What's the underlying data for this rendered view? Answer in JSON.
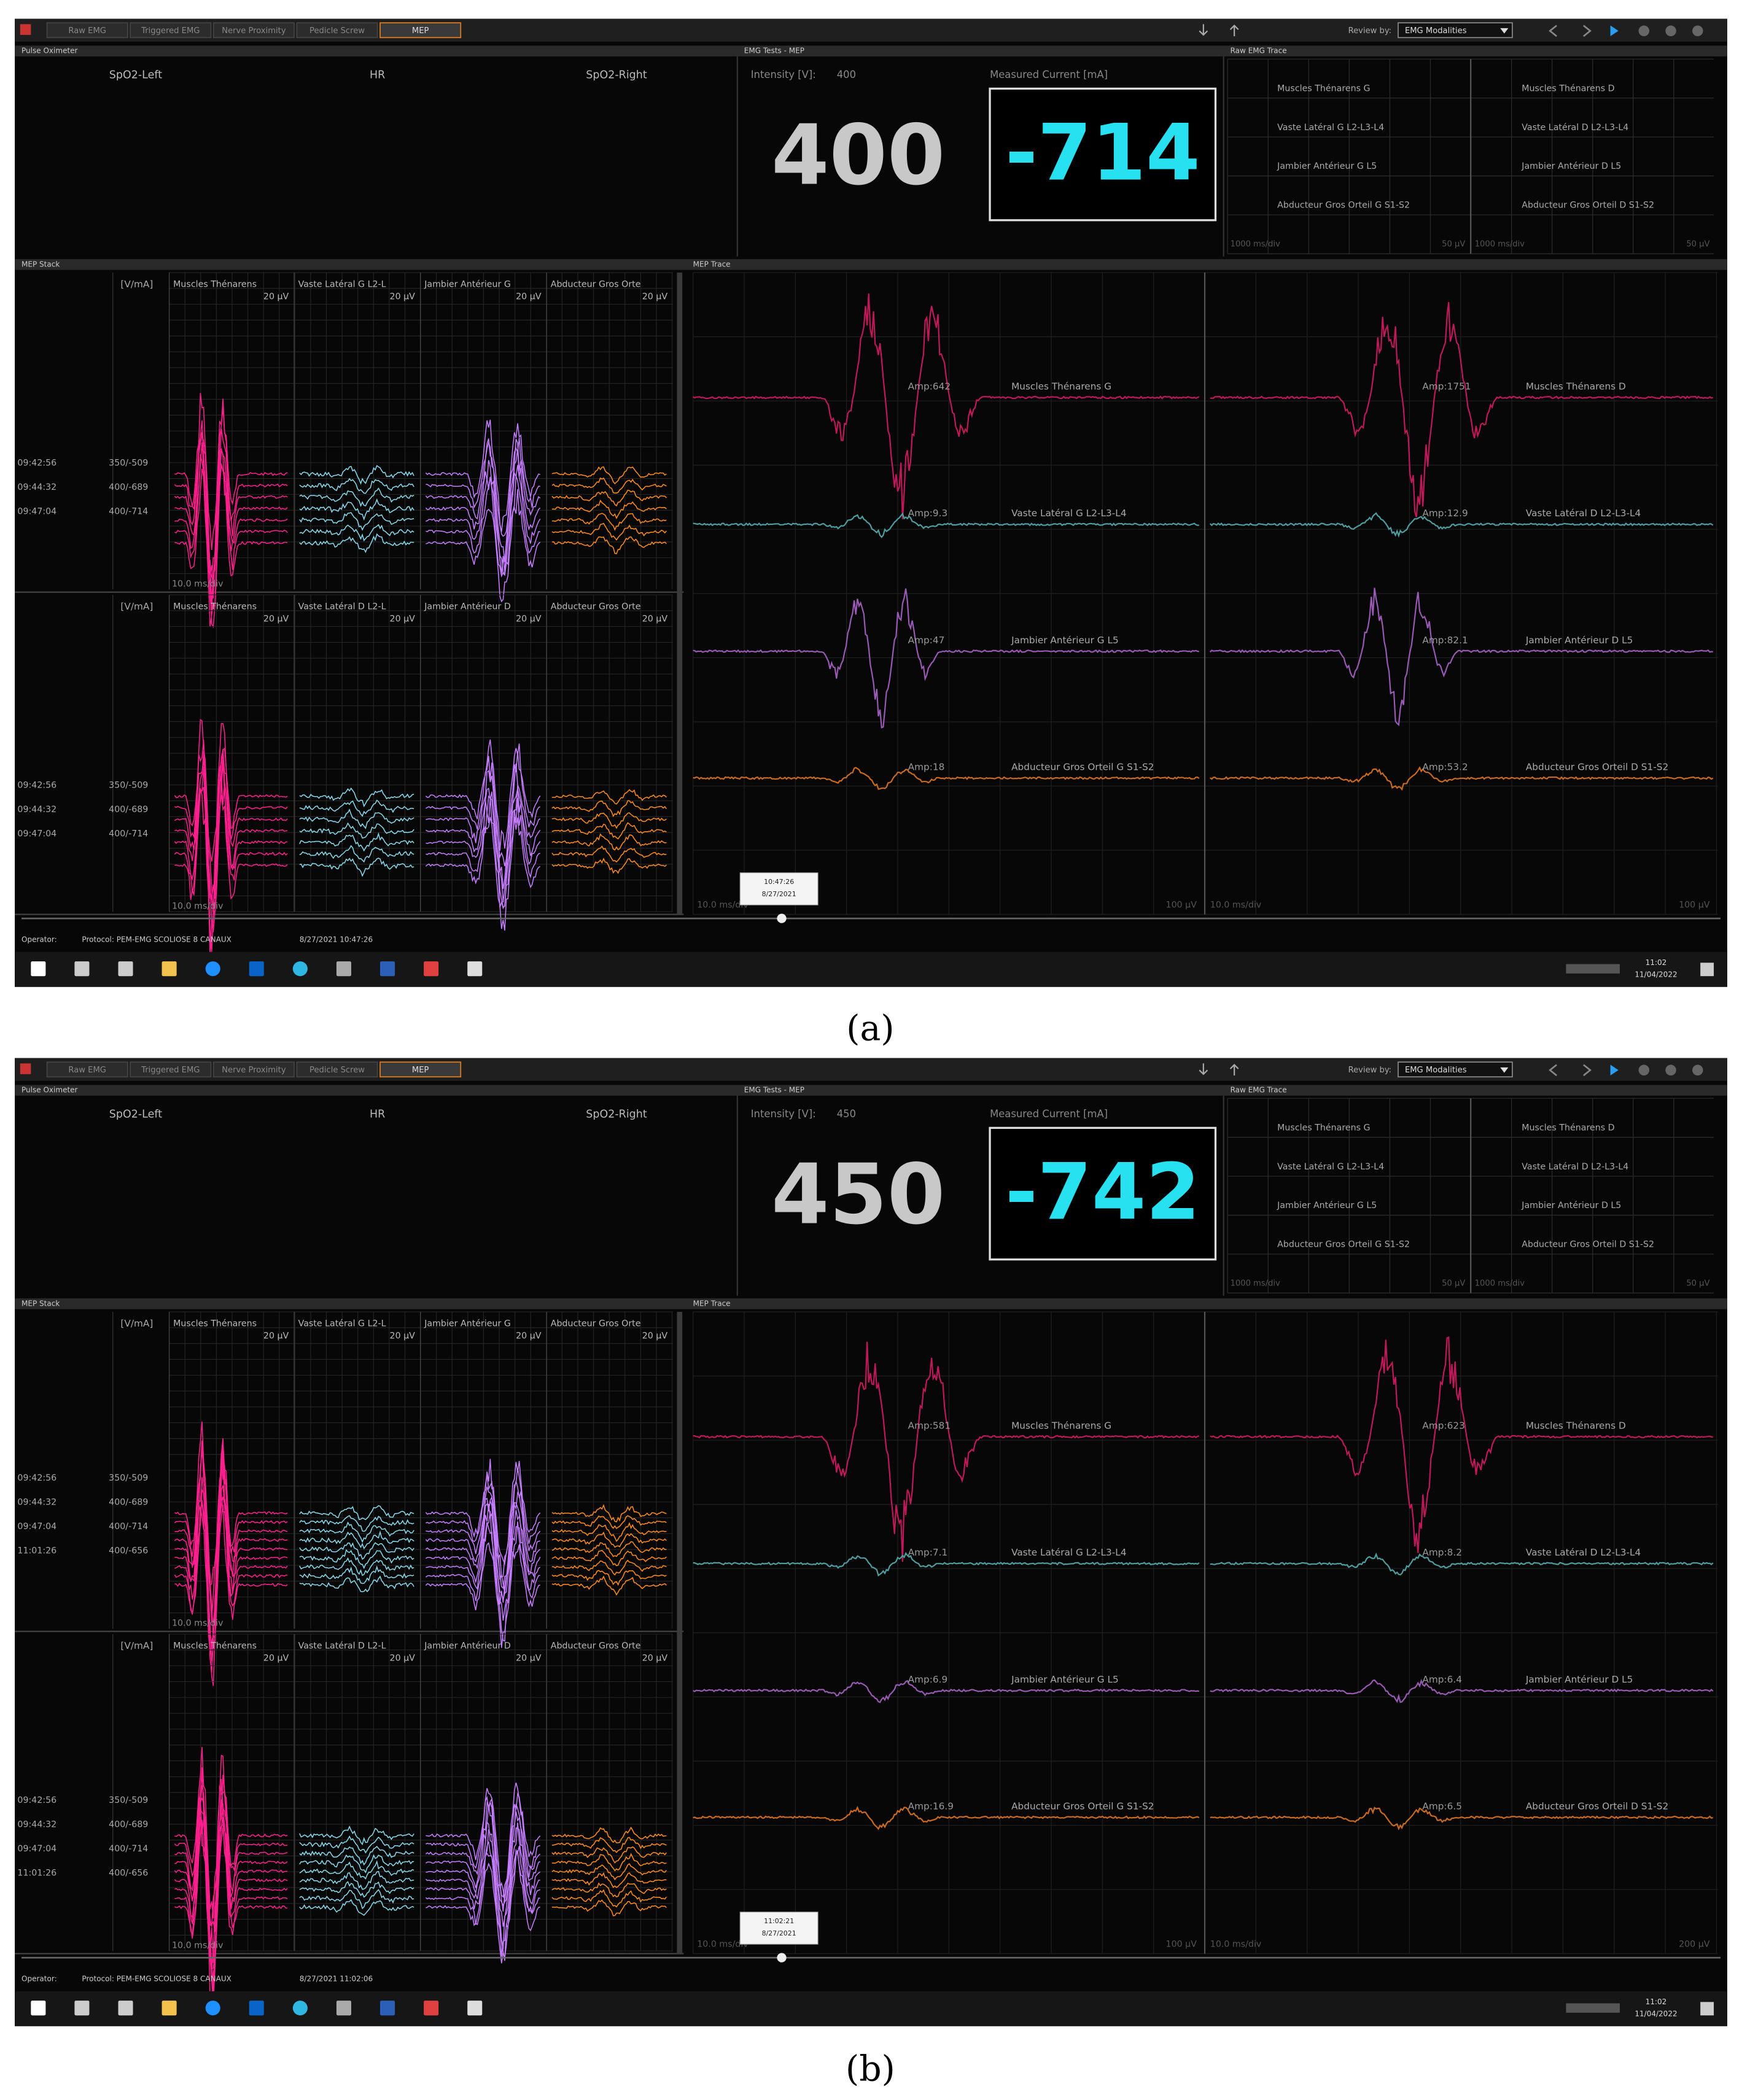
{
  "panels": [
    {
      "label": "(a)",
      "tabs": [
        "Raw EMG",
        "Triggered EMG",
        "Nerve Proximity",
        "Pedicle Screw",
        "MEP"
      ],
      "review_by_label": "Review by:",
      "review_by": "EMG Modalities",
      "pulse_oximeter": {
        "title": "Pulse Oximeter",
        "fields": [
          "SpO2-Left",
          "HR",
          "SpO2-Right"
        ]
      },
      "emg_tests": {
        "title": "EMG Tests - MEP",
        "intensity_label": "Intensity [V]:",
        "intensity": "400",
        "current_label": "Measured Current [mA]",
        "current": "-714"
      },
      "raw_emg": {
        "title": "Raw EMG Trace",
        "left": [
          "Muscles Thénarens G",
          "Vaste Latéral G L2-L3-L4",
          "Jambier Antérieur G L5",
          "Abducteur Gros Orteil G S1-S2"
        ],
        "right": [
          "Muscles Thénarens D",
          "Vaste Latéral D L2-L3-L4",
          "Jambier Antérieur D L5",
          "Abducteur Gros Orteil D S1-S2"
        ],
        "footer": [
          "1000 ms/div",
          "50 µV",
          "1000 ms/div",
          "50 µV"
        ]
      },
      "mep_stack": {
        "title": "MEP Stack",
        "groups": [
          {
            "unit": "[V/mA]",
            "channels": [
              {
                "name": "Muscles Thénarens",
                "scale": "20 µV"
              },
              {
                "name": "Vaste Latéral G L2-L",
                "scale": "20 µV"
              },
              {
                "name": "Jambier Antérieur G",
                "scale": "20 µV"
              },
              {
                "name": "Abducteur Gros Orte",
                "scale": "20 µV"
              }
            ],
            "rows": [
              [
                "09:42:56",
                "350/-509"
              ],
              [
                "09:44:32",
                "400/-689"
              ],
              [
                "09:47:04",
                "400/-714"
              ]
            ],
            "time_div": "10.0 ms/div"
          },
          {
            "unit": "[V/mA]",
            "channels": [
              {
                "name": "Muscles Thénarens",
                "scale": "20 µV"
              },
              {
                "name": "Vaste Latéral D L2-L",
                "scale": "20 µV"
              },
              {
                "name": "Jambier Antérieur D",
                "scale": "20 µV"
              },
              {
                "name": "Abducteur Gros Orte",
                "scale": "20 µV"
              }
            ],
            "rows": [
              [
                "09:42:56",
                "350/-509"
              ],
              [
                "09:44:32",
                "400/-689"
              ],
              [
                "09:47:04",
                "400/-714"
              ]
            ],
            "time_div": "10.0 ms/div"
          }
        ]
      },
      "mep_trace": {
        "title": "MEP Trace",
        "channels": [
          {
            "amp_left": "Amp:642",
            "name_left": "Muscles Thénarens G",
            "amp_right": "Amp:1751",
            "name_right": "Muscles Thénarens D"
          },
          {
            "amp_left": "Amp:9.3",
            "name_left": "Vaste Latéral G L2-L3-L4",
            "amp_right": "Amp:12.9",
            "name_right": "Vaste Latéral D L2-L3-L4"
          },
          {
            "amp_left": "Amp:47",
            "name_left": "Jambier Antérieur G L5",
            "amp_right": "Amp:82.1",
            "name_right": "Jambier Antérieur D L5"
          },
          {
            "amp_left": "Amp:18",
            "name_left": "Abducteur Gros Orteil G S1-S2",
            "amp_right": "Amp:53.2",
            "name_right": "Abducteur Gros Orteil D S1-S2"
          }
        ],
        "footer": [
          "10.0 ms/div",
          "100 µV",
          "10.0 ms/div",
          "100 µV"
        ],
        "cursor": [
          "10:47:26",
          "8/27/2021"
        ]
      },
      "status": {
        "operator": "Operator:",
        "protocol": "Protocol: PEM-EMG SCOLIOSE 8 CANAUX",
        "time": "8/27/2021 10:47:26"
      },
      "taskbar": {
        "time": "11:02",
        "date": "11/04/2022"
      }
    },
    {
      "label": "(b)",
      "tabs": [
        "Raw EMG",
        "Triggered EMG",
        "Nerve Proximity",
        "Pedicle Screw",
        "MEP"
      ],
      "review_by_label": "Review by:",
      "review_by": "EMG Modalities",
      "pulse_oximeter": {
        "title": "Pulse Oximeter",
        "fields": [
          "SpO2-Left",
          "HR",
          "SpO2-Right"
        ]
      },
      "emg_tests": {
        "title": "EMG Tests - MEP",
        "intensity_label": "Intensity [V]:",
        "intensity": "450",
        "current_label": "Measured Current [mA]",
        "current": "-742"
      },
      "raw_emg": {
        "title": "Raw EMG Trace",
        "left": [
          "Muscles Thénarens G",
          "Vaste Latéral G L2-L3-L4",
          "Jambier Antérieur G L5",
          "Abducteur Gros Orteil G S1-S2"
        ],
        "right": [
          "Muscles Thénarens D",
          "Vaste Latéral D L2-L3-L4",
          "Jambier Antérieur D L5",
          "Abducteur Gros Orteil D S1-S2"
        ],
        "footer": [
          "1000 ms/div",
          "50 µV",
          "1000 ms/div",
          "50 µV"
        ]
      },
      "mep_stack": {
        "title": "MEP Stack",
        "groups": [
          {
            "unit": "[V/mA]",
            "channels": [
              {
                "name": "Muscles Thénarens",
                "scale": "20 µV"
              },
              {
                "name": "Vaste Latéral G L2-L",
                "scale": "20 µV"
              },
              {
                "name": "Jambier Antérieur G",
                "scale": "20 µV"
              },
              {
                "name": "Abducteur Gros Orte",
                "scale": "20 µV"
              }
            ],
            "rows": [
              [
                "09:42:56",
                "350/-509"
              ],
              [
                "09:44:32",
                "400/-689"
              ],
              [
                "09:47:04",
                "400/-714"
              ],
              [
                "11:01:26",
                "400/-656"
              ]
            ],
            "time_div": "10.0 ms/div"
          },
          {
            "unit": "[V/mA]",
            "channels": [
              {
                "name": "Muscles Thénarens",
                "scale": "20 µV"
              },
              {
                "name": "Vaste Latéral D L2-L",
                "scale": "20 µV"
              },
              {
                "name": "Jambier Antérieur D",
                "scale": "20 µV"
              },
              {
                "name": "Abducteur Gros Orte",
                "scale": "20 µV"
              }
            ],
            "rows": [
              [
                "09:42:56",
                "350/-509"
              ],
              [
                "09:44:32",
                "400/-689"
              ],
              [
                "09:47:04",
                "400/-714"
              ],
              [
                "11:01:26",
                "400/-656"
              ]
            ],
            "time_div": "10.0 ms/div"
          }
        ]
      },
      "mep_trace": {
        "title": "MEP Trace",
        "channels": [
          {
            "amp_left": "Amp:581",
            "name_left": "Muscles Thénarens G",
            "amp_right": "Amp:623",
            "name_right": "Muscles Thénarens D"
          },
          {
            "amp_left": "Amp:7.1",
            "name_left": "Vaste Latéral G L2-L3-L4",
            "amp_right": "Amp:8.2",
            "name_right": "Vaste Latéral D L2-L3-L4"
          },
          {
            "amp_left": "Amp:6.9",
            "name_left": "Jambier Antérieur G L5",
            "amp_right": "Amp:6.4",
            "name_right": "Jambier Antérieur D L5"
          },
          {
            "amp_left": "Amp:16.9",
            "name_left": "Abducteur Gros Orteil G S1-S2",
            "amp_right": "Amp:6.5",
            "name_right": "Abducteur Gros Orteil D S1-S2"
          }
        ],
        "footer": [
          "10.0 ms/div",
          "100 µV",
          "10.0 ms/div",
          "200 µV"
        ],
        "cursor": [
          "11:02:21",
          "8/27/2021"
        ]
      },
      "status": {
        "operator": "Operator:",
        "protocol": "Protocol: PEM-EMG SCOLIOSE 8 CANAUX",
        "time": "8/27/2021 11:02:06"
      },
      "taskbar": {
        "time": "11:02",
        "date": "11/04/2022"
      }
    }
  ]
}
